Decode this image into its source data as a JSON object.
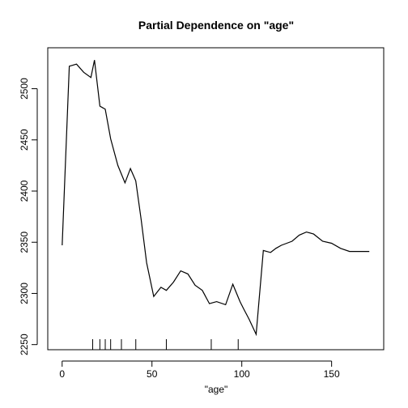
{
  "chart_data": {
    "type": "line",
    "title": "Partial Dependence on \"age\"",
    "xlabel": "\"age\"",
    "ylabel": "",
    "xlim": [
      -8,
      179
    ],
    "ylim": [
      2245,
      2540
    ],
    "xticks": [
      0,
      50,
      100,
      150
    ],
    "yticks": [
      2250,
      2300,
      2350,
      2400,
      2450,
      2500
    ],
    "grid": false,
    "series": [
      {
        "x": [
          0,
          4,
          8,
          12,
          16,
          18,
          21,
          24,
          27,
          31,
          35,
          38,
          41,
          44,
          47,
          51,
          55,
          58,
          62,
          66,
          70,
          74,
          78,
          82,
          86,
          91,
          95,
          99,
          101,
          104,
          108,
          112,
          116,
          119,
          122,
          125,
          128,
          132,
          136,
          140,
          145,
          150,
          155,
          160,
          165,
          171
        ],
        "y": [
          2347,
          2522,
          2524,
          2516,
          2511,
          2528,
          2483,
          2480,
          2451,
          2425,
          2408,
          2422,
          2410,
          2372,
          2330,
          2297,
          2306,
          2303,
          2311,
          2322,
          2319,
          2308,
          2303,
          2290,
          2292,
          2289,
          2309,
          2292,
          2285,
          2275,
          2260,
          2342,
          2340,
          2344,
          2347,
          2349,
          2351,
          2357,
          2360,
          2358,
          2351,
          2349,
          2344,
          2341,
          2341,
          2341
        ]
      }
    ],
    "rug": [
      17,
      21,
      24,
      27,
      33,
      41,
      58,
      83,
      98
    ]
  }
}
